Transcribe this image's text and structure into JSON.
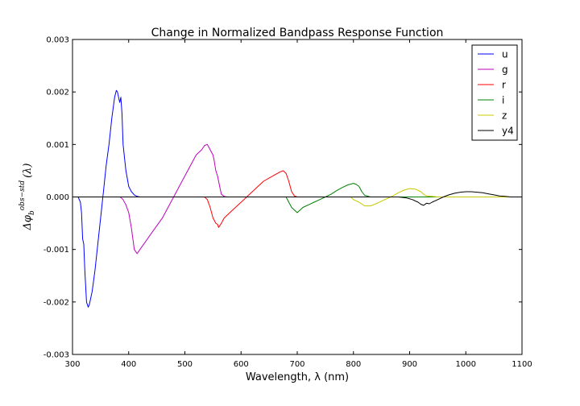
{
  "chart_data": {
    "type": "line",
    "title": "Change in Normalized Bandpass Response Function",
    "xlabel": "Wavelength, λ (nm)",
    "ylabel": "Δφ_b^{obs−std}(λ)",
    "ylabel_parts": {
      "base": "Δφ",
      "sub": "b",
      "sup": "obs−std",
      "tail": "(λ)"
    },
    "xlim": [
      300,
      1100
    ],
    "ylim": [
      -0.003,
      0.003
    ],
    "xticks": [
      "300",
      "400",
      "500",
      "600",
      "700",
      "800",
      "900",
      "1000",
      "1100"
    ],
    "yticks": [
      "-0.003",
      "-0.002",
      "-0.001",
      "0.000",
      "0.001",
      "0.002",
      "0.003"
    ],
    "legend_position": "top-right",
    "grid": false,
    "series": [
      {
        "name": "u",
        "color": "#0000ff",
        "x": [
          300,
          310,
          314,
          316,
          318,
          320,
          322,
          325,
          328,
          330,
          332,
          335,
          340,
          345,
          350,
          355,
          360,
          365,
          370,
          375,
          378,
          380,
          382,
          384,
          386,
          388,
          390,
          392,
          395,
          400,
          405,
          410,
          415,
          420,
          430,
          1100
        ],
        "y": [
          0.0,
          0.0,
          -0.0001,
          -0.0003,
          -0.0008,
          -0.0009,
          -0.0014,
          -0.002,
          -0.0021,
          -0.00205,
          -0.00195,
          -0.0018,
          -0.0014,
          -0.0009,
          -0.0004,
          0.0001,
          0.0006,
          0.001,
          0.0015,
          0.0019,
          0.00203,
          0.002,
          0.0019,
          0.0018,
          0.0019,
          0.0016,
          0.001,
          0.0008,
          0.0005,
          0.0002,
          0.0001,
          4e-05,
          1e-05,
          0.0,
          0.0,
          0.0
        ]
      },
      {
        "name": "g",
        "color": "#bf00bf",
        "x": [
          300,
          385,
          390,
          395,
          400,
          405,
          410,
          415,
          420,
          430,
          440,
          450,
          460,
          470,
          480,
          490,
          500,
          510,
          520,
          530,
          535,
          540,
          545,
          550,
          552,
          555,
          558,
          560,
          562,
          565,
          570,
          575,
          1100
        ],
        "y": [
          0.0,
          0.0,
          -5e-05,
          -0.00015,
          -0.0003,
          -0.0006,
          -0.001,
          -0.00108,
          -0.001,
          -0.00085,
          -0.0007,
          -0.00055,
          -0.0004,
          -0.0002,
          0.0,
          0.0002,
          0.0004,
          0.0006,
          0.0008,
          0.0009,
          0.00098,
          0.001,
          0.0009,
          0.0008,
          0.0007,
          0.0005,
          0.0004,
          0.0003,
          0.0002,
          5e-05,
          1e-05,
          0.0,
          0.0
        ]
      },
      {
        "name": "r",
        "color": "#ff0000",
        "x": [
          300,
          535,
          540,
          545,
          550,
          555,
          558,
          560,
          565,
          570,
          580,
          600,
          620,
          640,
          660,
          670,
          675,
          680,
          685,
          690,
          695,
          700,
          710,
          1100
        ],
        "y": [
          0.0,
          0.0,
          -5e-05,
          -0.0002,
          -0.0004,
          -0.0005,
          -0.00052,
          -0.00058,
          -0.0005,
          -0.0004,
          -0.0003,
          -0.0001,
          0.0001,
          0.0003,
          0.00042,
          0.00048,
          0.0005,
          0.00045,
          0.0003,
          0.0001,
          2e-05,
          0.0,
          0.0,
          0.0
        ]
      },
      {
        "name": "i",
        "color": "#008000",
        "x": [
          300,
          680,
          685,
          690,
          695,
          700,
          705,
          710,
          720,
          730,
          740,
          750,
          760,
          770,
          780,
          790,
          800,
          805,
          810,
          815,
          820,
          830,
          1100
        ],
        "y": [
          0.0,
          0.0,
          -0.0001,
          -0.0002,
          -0.00025,
          -0.0003,
          -0.00025,
          -0.0002,
          -0.00015,
          -0.0001,
          -5e-05,
          0.0,
          5e-05,
          0.00012,
          0.00018,
          0.00023,
          0.00026,
          0.00024,
          0.0002,
          0.0001,
          3e-05,
          0.0,
          0.0
        ]
      },
      {
        "name": "z",
        "color": "#c8c800",
        "x": [
          300,
          795,
          800,
          810,
          820,
          830,
          840,
          850,
          860,
          870,
          880,
          890,
          900,
          910,
          920,
          925,
          930,
          940,
          950,
          1100
        ],
        "y": [
          0.0,
          0.0,
          -5e-05,
          -0.0001,
          -0.00017,
          -0.00017,
          -0.00013,
          -8e-05,
          -3e-05,
          2e-05,
          8e-05,
          0.00013,
          0.00016,
          0.00015,
          0.0001,
          5e-05,
          2e-05,
          1e-05,
          0.0,
          0.0
        ]
      },
      {
        "name": "y4",
        "color": "#000000",
        "x": [
          300,
          880,
          895,
          905,
          915,
          920,
          925,
          930,
          935,
          940,
          950,
          960,
          970,
          980,
          990,
          1000,
          1010,
          1020,
          1030,
          1040,
          1050,
          1060,
          1070,
          1080,
          1100
        ],
        "y": [
          0.0,
          0.0,
          -2e-05,
          -5e-05,
          -0.0001,
          -0.00014,
          -0.00016,
          -0.00012,
          -0.00013,
          -0.0001,
          -5e-05,
          0.0,
          4e-05,
          7e-05,
          9e-05,
          0.0001,
          0.0001,
          9e-05,
          8e-05,
          6e-05,
          4e-05,
          2e-05,
          1e-05,
          0.0,
          0.0
        ]
      }
    ]
  }
}
